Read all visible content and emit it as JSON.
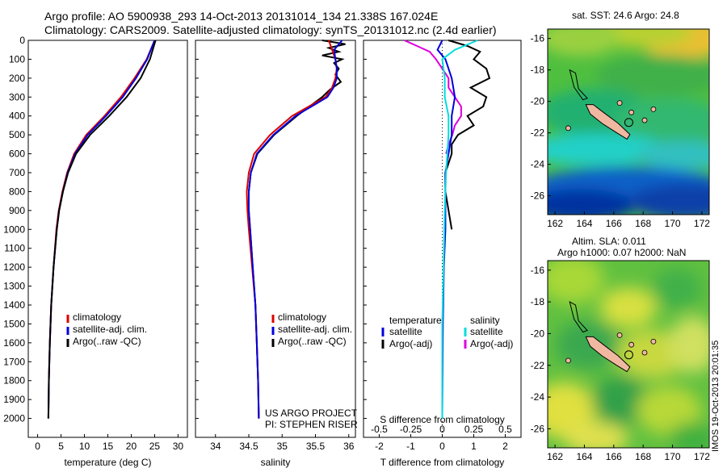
{
  "header": {
    "title_line1": "Argo profile: AO 5900938_293 14-Oct-2013 20131014_134 21.338S 167.024E",
    "title_line2": "Climatology: CARS2009. Satellite-adjusted climatology: synTS_20131012.nc (2.4d earlier)"
  },
  "maps": {
    "sst_title": "sat. SST: 24.6 Argo: 24.8",
    "sla_line1": "Altim. SLA: 0.011",
    "sla_line2": "Argo h1000: 0.07 h2000: NaN",
    "lon_ticks": [
      "162",
      "164",
      "166",
      "168",
      "170",
      "172"
    ],
    "lat_ticks": [
      "-16",
      "-18",
      "-20",
      "-22",
      "-24",
      "-26"
    ]
  },
  "credit": "IMOS 19-Oct-2013 20:01:35",
  "colors": {
    "climatology": "#dd0000",
    "satellite": "#0000dd",
    "argo": "#000000",
    "sal_satellite": "#00dddd",
    "sal_argo": "#dd00dd"
  },
  "chart_data": [
    {
      "type": "line",
      "xlabel": "temperature (deg C)",
      "ylabel": "",
      "xlim": [
        -2,
        32
      ],
      "ylim": [
        2100,
        0
      ],
      "xticks": [
        0,
        5,
        10,
        15,
        20,
        25,
        30
      ],
      "yticks": [
        0,
        100,
        200,
        300,
        400,
        500,
        600,
        700,
        800,
        900,
        1000,
        1100,
        1200,
        1300,
        1400,
        1500,
        1600,
        1700,
        1800,
        1900,
        2000
      ],
      "legend": [
        "climatology",
        "satellite-adj. clim.",
        "Argo(..raw -QC)"
      ],
      "legend_placement": "lower-center",
      "series": [
        {
          "name": "climatology",
          "depth": [
            0,
            100,
            200,
            300,
            400,
            500,
            600,
            700,
            800,
            900,
            1000,
            1200,
            1400,
            1600,
            1800,
            2000
          ],
          "values": [
            25,
            23.3,
            20.7,
            17.8,
            14.3,
            10.4,
            7.8,
            6.3,
            5.3,
            4.5,
            4,
            3.4,
            2.9,
            2.6,
            2.4,
            2.3
          ]
        },
        {
          "name": "satellite-adj. clim.",
          "depth": [
            0,
            100,
            200,
            300,
            400,
            500,
            600,
            700,
            800,
            900,
            1000,
            1200,
            1400,
            1600,
            1800,
            2000
          ],
          "values": [
            25,
            23.4,
            21,
            18.2,
            14.6,
            10.7,
            8,
            6.4,
            5.4,
            4.6,
            4.1,
            3.4,
            2.9,
            2.6,
            2.4,
            2.3
          ]
        },
        {
          "name": "Argo(..raw -QC)",
          "depth": [
            0,
            100,
            200,
            300,
            400,
            500,
            600,
            700,
            800,
            900,
            1000,
            1200,
            1400,
            1600,
            1800,
            2000
          ],
          "values": [
            25.2,
            24,
            22,
            19,
            15.3,
            11.2,
            8.2,
            6.5,
            5.4,
            4.6,
            4.1,
            3.4,
            2.9,
            2.6,
            2.4,
            2.3
          ]
        }
      ]
    },
    {
      "type": "line",
      "xlabel": "salinity",
      "ylabel": "",
      "xlim": [
        33.7,
        36.1
      ],
      "ylim": [
        2100,
        0
      ],
      "xticks": [
        34,
        34.5,
        35,
        35.5,
        36
      ],
      "legend": [
        "climatology",
        "satellite-adj. clim.",
        "Argo(..raw -QC)"
      ],
      "legend_placement": "lower-center",
      "annotation": [
        "US ARGO PROJECT",
        "PI: STEPHEN RISER"
      ],
      "series": [
        {
          "name": "climatology",
          "depth": [
            0,
            50,
            100,
            150,
            200,
            250,
            300,
            400,
            500,
            600,
            700,
            800,
            900,
            1000,
            1200,
            1400,
            1600,
            1800,
            2000
          ],
          "values": [
            35.7,
            35.75,
            35.8,
            35.82,
            35.8,
            35.75,
            35.65,
            35.15,
            34.82,
            34.58,
            34.5,
            34.47,
            34.48,
            34.5,
            34.55,
            34.6,
            34.62,
            34.64,
            34.65
          ]
        },
        {
          "name": "satellite-adj. clim.",
          "depth": [
            0,
            50,
            100,
            150,
            200,
            250,
            300,
            400,
            500,
            600,
            700,
            800,
            900,
            1000,
            1200,
            1400,
            1600,
            1800,
            2000
          ],
          "values": [
            35.9,
            35.78,
            35.8,
            35.82,
            35.82,
            35.77,
            35.68,
            35.2,
            34.87,
            34.62,
            34.53,
            34.5,
            34.5,
            34.52,
            34.56,
            34.6,
            34.62,
            34.64,
            34.65
          ]
        },
        {
          "name": "Argo(..raw -QC)",
          "depth": [
            0,
            20,
            40,
            60,
            80,
            100,
            120,
            150,
            180,
            220,
            260,
            300,
            400,
            500,
            600,
            700,
            800,
            900,
            1000,
            1200,
            1400,
            1600,
            1800,
            2000
          ],
          "values": [
            35.6,
            35.95,
            35.7,
            35.85,
            35.6,
            35.9,
            35.78,
            35.85,
            35.8,
            35.88,
            35.72,
            35.6,
            35.22,
            34.88,
            34.63,
            34.53,
            34.5,
            34.5,
            34.52,
            34.56,
            34.6,
            34.62,
            34.64,
            34.65
          ]
        }
      ]
    },
    {
      "type": "line",
      "xlabel": "T difference from climatology",
      "xlabel_top": "S difference from climatology",
      "ylabel": "",
      "xlim": [
        -2.5,
        2.5
      ],
      "ylim": [
        2100,
        0
      ],
      "xticks": [
        -2,
        -1,
        0,
        1,
        2
      ],
      "xticks_top": [
        "-0.5",
        "-0.25",
        "0",
        "0.25",
        "0.5"
      ],
      "legend_temperature": [
        "temperature",
        "satellite",
        "Argo(-adj)"
      ],
      "legend_salinity": [
        "salinity",
        "satellite",
        "Argo(-adj)"
      ],
      "series": [
        {
          "name": "satellite",
          "quantity": "temperature",
          "depth": [
            0,
            50,
            100,
            200,
            300,
            400,
            500,
            600,
            700,
            800,
            1000,
            1200,
            1500,
            2000
          ],
          "values": [
            0,
            -0.15,
            0.1,
            0.3,
            0.4,
            0.3,
            0.3,
            0.2,
            0.1,
            0.1,
            0.1,
            0.05,
            0.02,
            0
          ]
        },
        {
          "name": "Argo(-adj)",
          "quantity": "temperature",
          "depth": [
            0,
            30,
            60,
            100,
            150,
            200,
            250,
            300,
            350,
            400,
            450,
            500,
            550,
            600,
            650,
            700,
            800,
            900,
            1000
          ],
          "values": [
            0.2,
            0.8,
            1.2,
            1.0,
            1.4,
            1.5,
            0.9,
            1.4,
            1.3,
            0.8,
            1.0,
            0.5,
            0.3,
            0.3,
            0.2,
            0.1,
            0.1,
            0.2,
            0.3
          ]
        },
        {
          "name": "satellite",
          "quantity": "salinity",
          "depth": [
            0,
            50,
            100,
            200,
            300,
            400,
            500,
            700,
            900,
            1200,
            1500,
            2000
          ],
          "values": [
            0.28,
            0.1,
            0.0,
            0.02,
            0.02,
            0.05,
            0.05,
            0.03,
            0.02,
            0.01,
            0.0,
            0.0
          ]
        },
        {
          "name": "Argo(-adj)",
          "quantity": "salinity",
          "depth": [
            0,
            30,
            60,
            100,
            150,
            200,
            250,
            300,
            350,
            400,
            450,
            500,
            550,
            600
          ],
          "values": [
            -0.3,
            -0.2,
            -0.1,
            -0.05,
            0.0,
            0.05,
            0.05,
            0.1,
            0.15,
            0.15,
            0.1,
            0.08,
            0.05,
            0.03
          ]
        }
      ]
    },
    {
      "type": "heatmap",
      "title": "sat. SST: 24.6 Argo: 24.8",
      "xlim": [
        161.5,
        172.5
      ],
      "ylim": [
        -27.2,
        -15.4
      ],
      "xticks": [
        162,
        164,
        166,
        168,
        170,
        172
      ],
      "yticks": [
        -16,
        -18,
        -20,
        -22,
        -24,
        -26
      ],
      "argo_position": {
        "lon": 167.024,
        "lat": -21.338
      }
    },
    {
      "type": "heatmap",
      "title": "Altim. SLA: 0.011",
      "xlim": [
        161.5,
        172.5
      ],
      "ylim": [
        -27.2,
        -15.4
      ],
      "xticks": [
        162,
        164,
        166,
        168,
        170,
        172
      ],
      "yticks": [
        -16,
        -18,
        -20,
        -22,
        -24,
        -26
      ],
      "argo_position": {
        "lon": 167.024,
        "lat": -21.338
      }
    }
  ]
}
